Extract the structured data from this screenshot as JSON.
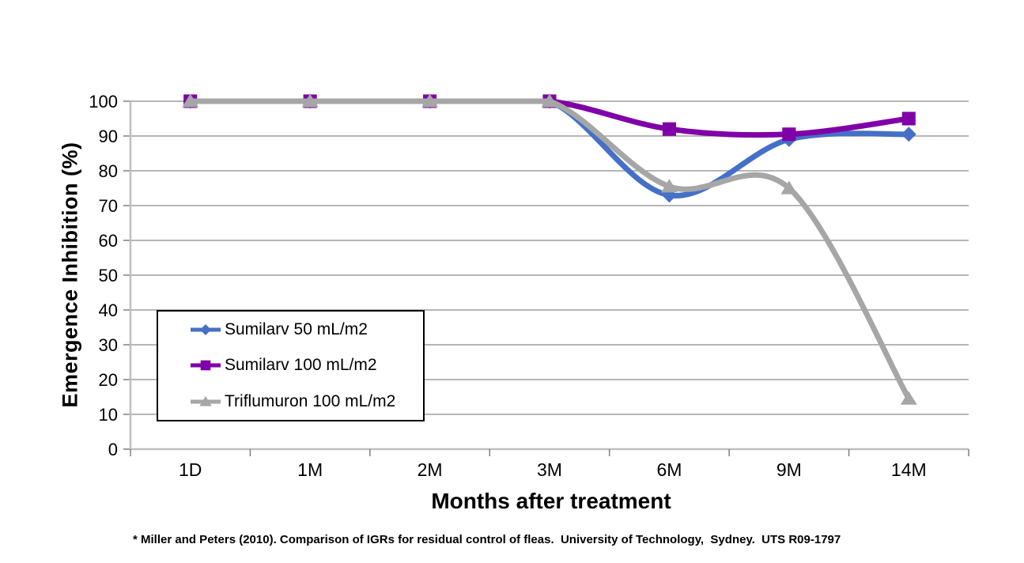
{
  "chart_data": {
    "type": "line",
    "smoothed": true,
    "xlabel": "Months after treatment",
    "ylabel": "Emergence Inhibition (%)",
    "categories": [
      "1D",
      "1M",
      "2M",
      "3M",
      "6M",
      "9M",
      "14M"
    ],
    "ylim": [
      0,
      100
    ],
    "ytick_step": 10,
    "ytick_labels": [
      "0",
      "10",
      "20",
      "30",
      "40",
      "50",
      "60",
      "70",
      "80",
      "90",
      "100"
    ],
    "grid": "horizontal",
    "legend_position": "inside-middle-left-box",
    "series": [
      {
        "name": "Sumilarv 50 mL/m2",
        "color": "#4570C8",
        "marker": "diamond",
        "values": [
          100,
          100,
          100,
          100,
          73,
          89,
          90.5
        ]
      },
      {
        "name": "Sumilarv 100 mL/m2",
        "color": "#8000A8",
        "marker": "square",
        "values": [
          100,
          100,
          100,
          100,
          92,
          90.5,
          95
        ]
      },
      {
        "name": "Triflumuron 100 mL/m2",
        "color": "#A6A6A6",
        "marker": "triangle",
        "values": [
          100,
          100,
          100,
          100,
          75.5,
          75,
          14.5
        ]
      }
    ]
  },
  "footnote": "* Miller and Peters (2010). Comparison of IGRs for residual control of fleas.  University of Technology,  Sydney.  UTS R09-1797",
  "colors": {
    "background": "#FFFFFF",
    "gridline": "#8A8A8A",
    "axis_line": "#BFBFBF",
    "tick": "#7F7F7F",
    "text": "#000000",
    "legend_border": "#000000"
  }
}
